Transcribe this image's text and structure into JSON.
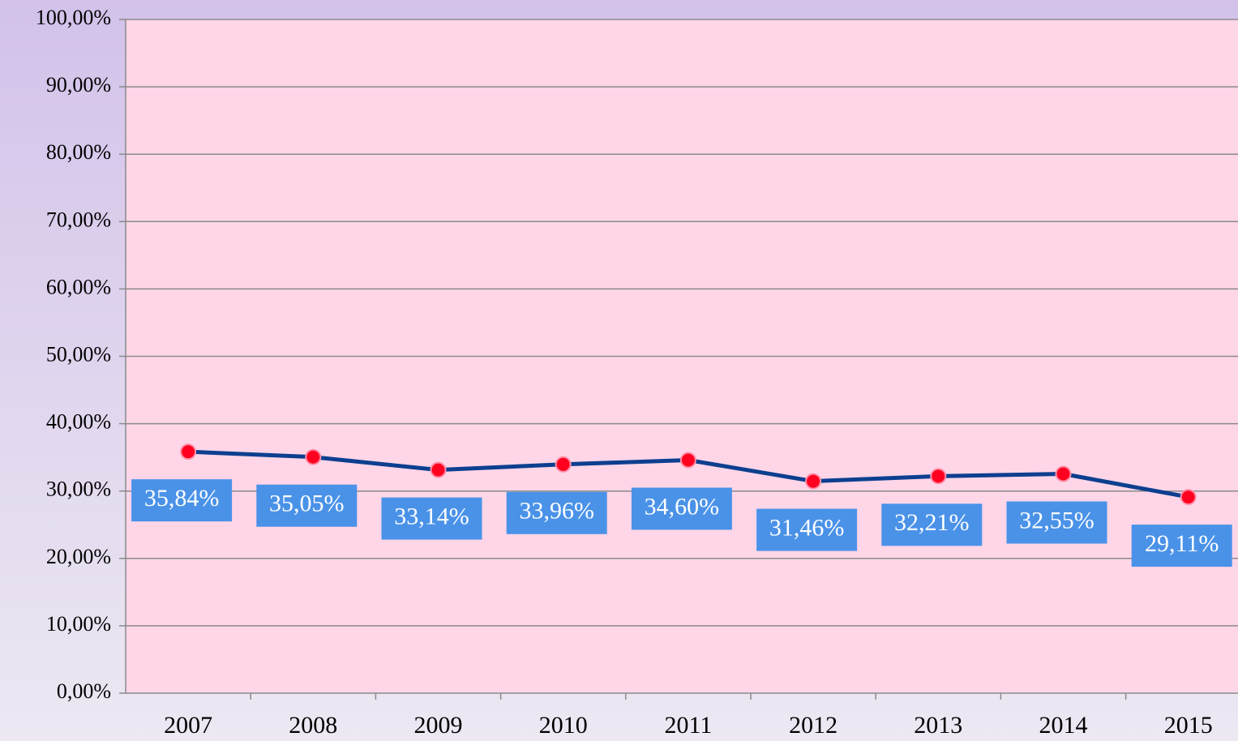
{
  "chart_data": {
    "type": "line",
    "categories": [
      "2007",
      "2008",
      "2009",
      "2010",
      "2011",
      "2012",
      "2013",
      "2014",
      "2015"
    ],
    "series": [
      {
        "color": "#0d3f8f",
        "marker_color": "#ff0020",
        "values": [
          35.84,
          35.05,
          33.14,
          33.96,
          34.6,
          31.46,
          32.21,
          32.55,
          29.11
        ],
        "value_labels": [
          "35,84%",
          "35,05%",
          "33,14%",
          "33,96%",
          "34,60%",
          "31,46%",
          "32,21%",
          "32,55%",
          "29,11%"
        ]
      }
    ],
    "ylim": [
      0,
      100
    ],
    "yticks": [
      {
        "value": 0,
        "label": "0,00%"
      },
      {
        "value": 10,
        "label": "10,00%"
      },
      {
        "value": 20,
        "label": "20,00%"
      },
      {
        "value": 30,
        "label": "30,00%"
      },
      {
        "value": 40,
        "label": "40,00%"
      },
      {
        "value": 50,
        "label": "50,00%"
      },
      {
        "value": 60,
        "label": "60,00%"
      },
      {
        "value": 70,
        "label": "70,00%"
      },
      {
        "value": 80,
        "label": "80,00%"
      },
      {
        "value": 90,
        "label": "90,00%"
      },
      {
        "value": 100,
        "label": "100,00%"
      }
    ],
    "grid": true
  }
}
